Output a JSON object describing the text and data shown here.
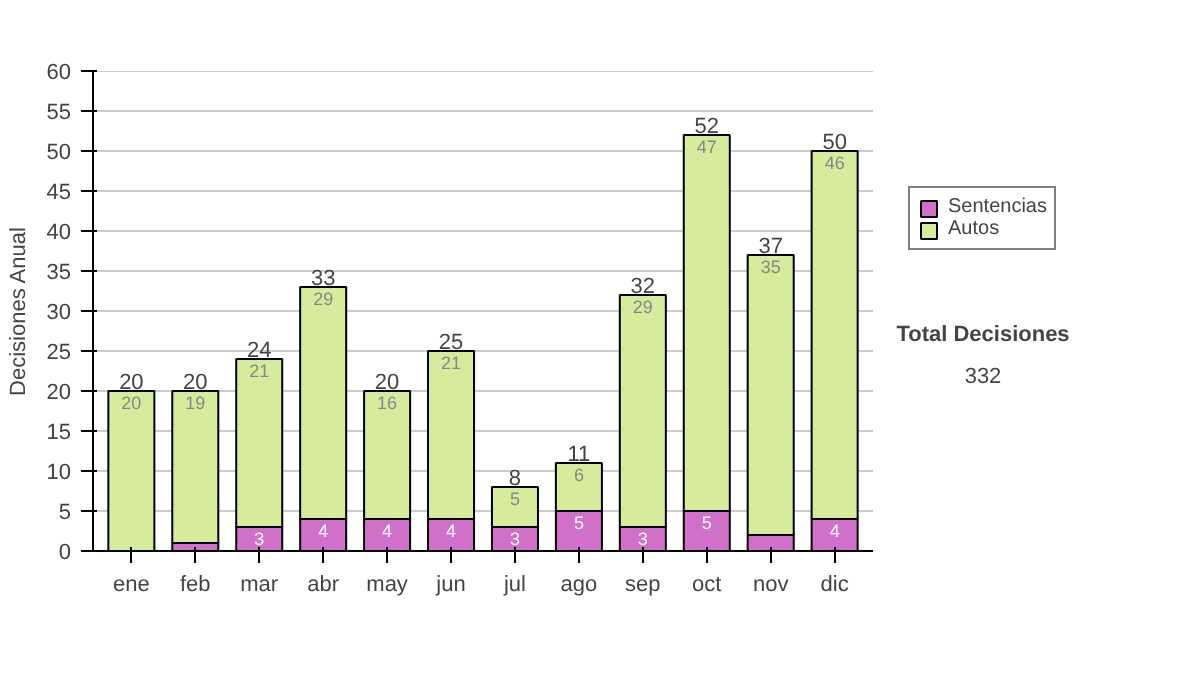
{
  "chart_data": {
    "type": "bar",
    "stacked": true,
    "ylabel": "Decisiones Anual",
    "categories": [
      "ene",
      "feb",
      "mar",
      "abr",
      "may",
      "jun",
      "jul",
      "ago",
      "sep",
      "oct",
      "nov",
      "dic"
    ],
    "ylim": [
      0,
      60
    ],
    "yticks": [
      0,
      5,
      10,
      15,
      20,
      25,
      30,
      35,
      40,
      45,
      50,
      55,
      60
    ],
    "grid": "y",
    "legend": "right",
    "series": [
      {
        "name": "Sentencias",
        "color": "#d070c8",
        "values": [
          0,
          1,
          3,
          4,
          4,
          4,
          3,
          5,
          3,
          5,
          2,
          4
        ],
        "value_labels": [
          null,
          null,
          "3",
          "4",
          "4",
          "4",
          "3",
          "5",
          "3",
          "5",
          null,
          "4"
        ]
      },
      {
        "name": "Autos",
        "color": "#d4ec9c",
        "values": [
          20,
          19,
          21,
          29,
          16,
          21,
          5,
          6,
          29,
          47,
          35,
          46
        ],
        "value_labels": [
          "20",
          "19",
          "21",
          "29",
          "16",
          "21",
          "5",
          "6",
          "29",
          "47",
          "35",
          "46"
        ]
      }
    ],
    "totals": [
      "20",
      "20",
      "24",
      "33",
      "20",
      "25",
      "8",
      "11",
      "32",
      "52",
      "37",
      "50"
    ],
    "annotations": [
      "Total Decisiones",
      "332"
    ]
  }
}
